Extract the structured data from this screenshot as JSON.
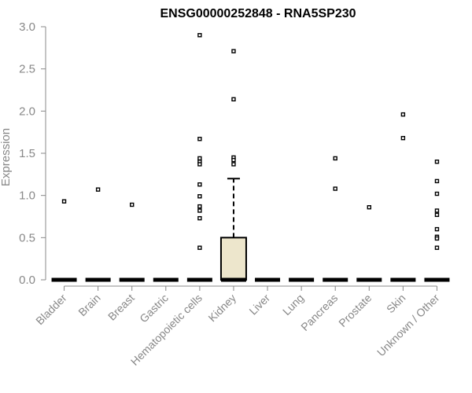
{
  "chart_data": {
    "type": "boxplot",
    "title": "ENSG00000252848 - RNA5SP230",
    "xlabel": "",
    "ylabel": "Expression",
    "ylim": [
      0,
      3.0
    ],
    "yticks": [
      "0.0",
      "0.5",
      "1.0",
      "1.5",
      "2.0",
      "2.5",
      "3.0"
    ],
    "ytick_values": [
      0,
      0.5,
      1.0,
      1.5,
      2.0,
      2.5,
      3.0
    ],
    "categories": [
      "Bladder",
      "Brain",
      "Breast",
      "Gastric",
      "Hematopoietic cells",
      "Kidney",
      "Liver",
      "Lung",
      "Pancreas",
      "Prostate",
      "Skin",
      "Unknown / Other"
    ],
    "box_fill": "#ede6cc",
    "boxes": [
      {
        "category": "Bladder",
        "q1": 0,
        "median": 0,
        "q3": 0,
        "whisker_low": 0,
        "whisker_high": 0,
        "outliers": [
          0.93
        ]
      },
      {
        "category": "Brain",
        "q1": 0,
        "median": 0,
        "q3": 0,
        "whisker_low": 0,
        "whisker_high": 0,
        "outliers": [
          1.07
        ]
      },
      {
        "category": "Breast",
        "q1": 0,
        "median": 0,
        "q3": 0,
        "whisker_low": 0,
        "whisker_high": 0,
        "outliers": [
          0.89
        ]
      },
      {
        "category": "Gastric",
        "q1": 0,
        "median": 0,
        "q3": 0,
        "whisker_low": 0,
        "whisker_high": 0,
        "outliers": []
      },
      {
        "category": "Hematopoietic cells",
        "q1": 0,
        "median": 0,
        "q3": 0,
        "whisker_low": 0,
        "whisker_high": 0,
        "outliers": [
          2.9,
          1.67,
          1.44,
          1.4,
          1.37,
          1.13,
          0.99,
          0.87,
          0.82,
          0.73,
          0.38
        ]
      },
      {
        "category": "Kidney",
        "q1": 0,
        "median": 0,
        "q3": 0.5,
        "whisker_low": 0,
        "whisker_high": 1.2,
        "outliers": [
          2.71,
          2.14,
          1.45,
          1.42,
          1.37
        ]
      },
      {
        "category": "Liver",
        "q1": 0,
        "median": 0,
        "q3": 0,
        "whisker_low": 0,
        "whisker_high": 0,
        "outliers": []
      },
      {
        "category": "Lung",
        "q1": 0,
        "median": 0,
        "q3": 0,
        "whisker_low": 0,
        "whisker_high": 0,
        "outliers": []
      },
      {
        "category": "Pancreas",
        "q1": 0,
        "median": 0,
        "q3": 0,
        "whisker_low": 0,
        "whisker_high": 0,
        "outliers": [
          1.44,
          1.08
        ]
      },
      {
        "category": "Prostate",
        "q1": 0,
        "median": 0,
        "q3": 0,
        "whisker_low": 0,
        "whisker_high": 0,
        "outliers": [
          0.86
        ]
      },
      {
        "category": "Skin",
        "q1": 0,
        "median": 0,
        "q3": 0,
        "whisker_low": 0,
        "whisker_high": 0,
        "outliers": [
          1.96,
          1.68
        ]
      },
      {
        "category": "Unknown / Other",
        "q1": 0,
        "median": 0,
        "q3": 0,
        "whisker_low": 0,
        "whisker_high": 0,
        "outliers": [
          1.4,
          1.17,
          1.02,
          0.82,
          0.77,
          0.6,
          0.51,
          0.49,
          0.38
        ]
      }
    ]
  }
}
